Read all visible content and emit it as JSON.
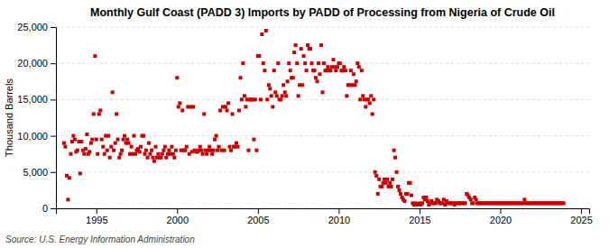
{
  "chart_data": {
    "type": "scatter",
    "title": "Monthly Gulf Coast (PADD 3) Imports by PADD of Processing from Nigeria of Crude Oil",
    "y_label": "Thousand Barrels",
    "annotations": [
      "Source: U.S. Energy Information Administration"
    ],
    "color": "#CC0000",
    "marker": "square",
    "grid": true,
    "xlim": [
      1992.5,
      2025.5
    ],
    "ylim": [
      0,
      25000
    ],
    "xticks": [
      1995,
      2000,
      2005,
      2010,
      2015,
      2020,
      2025
    ],
    "yticks": [
      0,
      {
        "value": 5000,
        "label": "5,000"
      },
      {
        "value": 10000,
        "label": "10,000"
      },
      {
        "value": 15000,
        "label": "15,000"
      },
      {
        "value": 20000,
        "label": "20,000"
      },
      {
        "value": 25000,
        "label": "25,000"
      }
    ],
    "x": [
      1993.0,
      1993.08,
      1993.17,
      1993.25,
      1993.33,
      1993.42,
      1993.5,
      1993.58,
      1993.67,
      1993.75,
      1993.83,
      1993.92,
      1994.0,
      1994.08,
      1994.17,
      1994.25,
      1994.33,
      1994.42,
      1994.5,
      1994.58,
      1994.67,
      1994.75,
      1994.83,
      1994.92,
      1995.0,
      1995.08,
      1995.17,
      1995.25,
      1995.33,
      1995.42,
      1995.5,
      1995.58,
      1995.67,
      1995.75,
      1995.83,
      1995.92,
      1996.0,
      1996.08,
      1996.17,
      1996.25,
      1996.33,
      1996.42,
      1996.5,
      1996.58,
      1996.67,
      1996.75,
      1996.83,
      1996.92,
      1997.0,
      1997.08,
      1997.17,
      1997.25,
      1997.33,
      1997.42,
      1997.5,
      1997.58,
      1997.67,
      1997.75,
      1997.83,
      1997.92,
      1998.0,
      1998.08,
      1998.17,
      1998.25,
      1998.33,
      1998.42,
      1998.5,
      1998.58,
      1998.67,
      1998.75,
      1998.83,
      1998.92,
      1999.0,
      1999.08,
      1999.17,
      1999.25,
      1999.33,
      1999.42,
      1999.5,
      1999.58,
      1999.67,
      1999.75,
      1999.83,
      1999.92,
      2000.0,
      2000.08,
      2000.17,
      2000.25,
      2000.33,
      2000.42,
      2000.5,
      2000.58,
      2000.67,
      2000.75,
      2000.83,
      2000.92,
      2001.0,
      2001.08,
      2001.17,
      2001.25,
      2001.33,
      2001.42,
      2001.5,
      2001.58,
      2001.67,
      2001.75,
      2001.83,
      2001.92,
      2002.0,
      2002.08,
      2002.17,
      2002.25,
      2002.33,
      2002.42,
      2002.5,
      2002.58,
      2002.67,
      2002.75,
      2002.83,
      2002.92,
      2003.0,
      2003.08,
      2003.17,
      2003.25,
      2003.33,
      2003.42,
      2003.5,
      2003.58,
      2003.67,
      2003.75,
      2003.83,
      2003.92,
      2004.0,
      2004.08,
      2004.17,
      2004.25,
      2004.33,
      2004.42,
      2004.5,
      2004.58,
      2004.67,
      2004.75,
      2004.83,
      2004.92,
      2005.0,
      2005.08,
      2005.17,
      2005.25,
      2005.33,
      2005.42,
      2005.5,
      2005.58,
      2005.67,
      2005.75,
      2005.83,
      2005.92,
      2006.0,
      2006.08,
      2006.17,
      2006.25,
      2006.33,
      2006.42,
      2006.5,
      2006.58,
      2006.67,
      2006.75,
      2006.83,
      2006.92,
      2007.0,
      2007.08,
      2007.17,
      2007.25,
      2007.33,
      2007.42,
      2007.5,
      2007.58,
      2007.67,
      2007.75,
      2007.83,
      2007.92,
      2008.0,
      2008.08,
      2008.17,
      2008.25,
      2008.33,
      2008.42,
      2008.5,
      2008.58,
      2008.67,
      2008.75,
      2008.83,
      2008.92,
      2009.0,
      2009.08,
      2009.17,
      2009.25,
      2009.33,
      2009.42,
      2009.5,
      2009.58,
      2009.67,
      2009.75,
      2009.83,
      2009.92,
      2010.0,
      2010.08,
      2010.17,
      2010.25,
      2010.33,
      2010.42,
      2010.5,
      2010.58,
      2010.67,
      2010.75,
      2010.83,
      2010.92,
      2011.0,
      2011.08,
      2011.17,
      2011.25,
      2011.33,
      2011.42,
      2011.5,
      2011.58,
      2011.67,
      2011.75,
      2011.83,
      2011.92,
      2012.0,
      2012.08,
      2012.17,
      2012.25,
      2012.33,
      2012.42,
      2012.5,
      2012.58,
      2012.67,
      2012.75,
      2012.83,
      2012.92,
      2013.0,
      2013.08,
      2013.17,
      2013.25,
      2013.33,
      2013.42,
      2013.5,
      2013.58,
      2013.67,
      2013.75,
      2013.83,
      2013.92,
      2014.0,
      2014.08,
      2014.17,
      2014.25,
      2014.33,
      2014.42,
      2014.5,
      2014.58,
      2014.67,
      2014.75,
      2014.83,
      2014.92,
      2015.0,
      2015.08,
      2015.17,
      2015.25,
      2015.33,
      2015.42,
      2015.5,
      2015.58,
      2015.67,
      2015.75,
      2015.83,
      2015.92,
      2016.0,
      2016.08,
      2016.17,
      2016.25,
      2016.33,
      2016.42,
      2016.5,
      2016.58,
      2016.67,
      2016.75,
      2016.83,
      2016.92,
      2017.0,
      2017.08,
      2017.17,
      2017.25,
      2017.33,
      2017.42,
      2017.5,
      2017.58,
      2017.67,
      2017.75,
      2017.83,
      2017.92,
      2018.0,
      2018.08,
      2018.17,
      2018.25,
      2018.33,
      2018.42,
      2018.5,
      2018.58,
      2018.67,
      2018.75,
      2018.83,
      2018.92,
      2019.0,
      2019.08,
      2019.17,
      2019.25,
      2019.33,
      2019.42,
      2019.5,
      2019.58,
      2019.67,
      2019.75,
      2019.83,
      2019.92,
      2020.0,
      2020.08,
      2020.17,
      2020.25,
      2020.33,
      2020.42,
      2020.5,
      2020.58,
      2020.67,
      2020.75,
      2020.83,
      2020.92,
      2021.0,
      2021.08,
      2021.17,
      2021.25,
      2021.33,
      2021.42,
      2021.5,
      2021.58,
      2021.67,
      2021.75,
      2021.83,
      2021.92,
      2022.0,
      2022.08,
      2022.17,
      2022.25,
      2022.33,
      2022.42,
      2022.5,
      2022.58,
      2022.67,
      2022.75,
      2022.83,
      2022.92,
      2023.0,
      2023.08,
      2023.17,
      2023.25,
      2023.33,
      2023.42,
      2023.5,
      2023.58,
      2023.67,
      2023.75,
      2023.83,
      2023.92
    ],
    "values": [
      9000,
      8500,
      4500,
      1200,
      4200,
      7500,
      9200,
      10000,
      9500,
      7800,
      8000,
      9200,
      4800,
      9200,
      8000,
      7500,
      8200,
      10200,
      7500,
      7800,
      9000,
      9500,
      13000,
      21000,
      9500,
      7500,
      13000,
      13500,
      9500,
      8500,
      7500,
      10000,
      8000,
      10000,
      7000,
      8500,
      16000,
      8000,
      9000,
      13000,
      9500,
      7000,
      7500,
      8000,
      9500,
      10000,
      9000,
      9500,
      9000,
      7500,
      8500,
      7500,
      10000,
      7500,
      8000,
      8200,
      7800,
      8500,
      10000,
      10000,
      7500,
      8000,
      7000,
      9000,
      7500,
      8000,
      7000,
      6500,
      8500,
      7000,
      7500,
      7000,
      7000,
      7500,
      8000,
      8500,
      7000,
      7500,
      8000,
      7500,
      8500,
      7500,
      7000,
      8000,
      18000,
      14000,
      14500,
      8000,
      13500,
      8000,
      8000,
      8500,
      14000,
      7500,
      14000,
      7800,
      14000,
      8000,
      7800,
      7800,
      8000,
      8500,
      8000,
      7500,
      13000,
      8000,
      7500,
      8000,
      8500,
      8000,
      7500,
      8000,
      9500,
      10000,
      8000,
      8500,
      13500,
      8000,
      14000,
      8000,
      14000,
      13500,
      14500,
      8500,
      8000,
      13000,
      8500,
      8500,
      9000,
      8500,
      13500,
      18000,
      15000,
      20000,
      15500,
      14000,
      15000,
      8000,
      15000,
      15000,
      15000,
      9500,
      15000,
      8000,
      21000,
      21000,
      15000,
      24000,
      20000,
      19000,
      24500,
      15000,
      17000,
      16500,
      15500,
      14000,
      19000,
      16000,
      15500,
      20000,
      15000,
      15000,
      15500,
      17000,
      16000,
      15500,
      17500,
      20000,
      19000,
      18000,
      18000,
      21500,
      22500,
      20000,
      15500,
      17000,
      22000,
      17000,
      21000,
      20000,
      19000,
      22500,
      22000,
      22000,
      20000,
      19000,
      19000,
      18000,
      17500,
      20000,
      18500,
      22500,
      16000,
      20000,
      19000,
      19000,
      19500,
      19000,
      19000,
      19500,
      20500,
      19500,
      19000,
      19500,
      20000,
      20000,
      19000,
      19000,
      19500,
      19000,
      15500,
      17000,
      17000,
      19000,
      17000,
      18500,
      17000,
      17500,
      20000,
      19500,
      15000,
      19000,
      15500,
      15000,
      14000,
      15000,
      15000,
      14500,
      15500,
      13000,
      15000,
      5000,
      4500,
      2000,
      4000,
      3000,
      3000,
      3500,
      4000,
      3500,
      4000,
      3000,
      3500,
      3000,
      4000,
      8000,
      7000,
      5000,
      3000,
      2500,
      2000,
      1500,
      1200,
      1000,
      2000,
      2000,
      3500,
      3500,
      1800,
      700,
      500,
      700,
      500,
      600,
      700,
      500,
      700,
      1500,
      1200,
      1500,
      1000,
      500,
      700,
      1000,
      700,
      700,
      700,
      1200,
      1000,
      700,
      700,
      700,
      1200,
      500,
      1000,
      700,
      700,
      700,
      700,
      700,
      500,
      700,
      700,
      700,
      700,
      700,
      700,
      700,
      700,
      2000,
      1800,
      1500,
      1200,
      700,
      700,
      1500,
      1200,
      700,
      700,
      700,
      700,
      700,
      700,
      700,
      700,
      700,
      700,
      700,
      700,
      700,
      700,
      700,
      700,
      700,
      700,
      700,
      700,
      700,
      700,
      700,
      700,
      700,
      700,
      700,
      700,
      700,
      700,
      700,
      700,
      700,
      700,
      700,
      1200,
      700,
      700,
      700,
      700,
      700,
      700,
      700,
      700,
      700,
      700,
      700,
      700,
      700,
      700,
      700,
      700,
      700,
      700,
      700,
      700,
      700,
      700,
      700,
      700,
      700,
      700,
      700,
      700,
      700
    ]
  }
}
